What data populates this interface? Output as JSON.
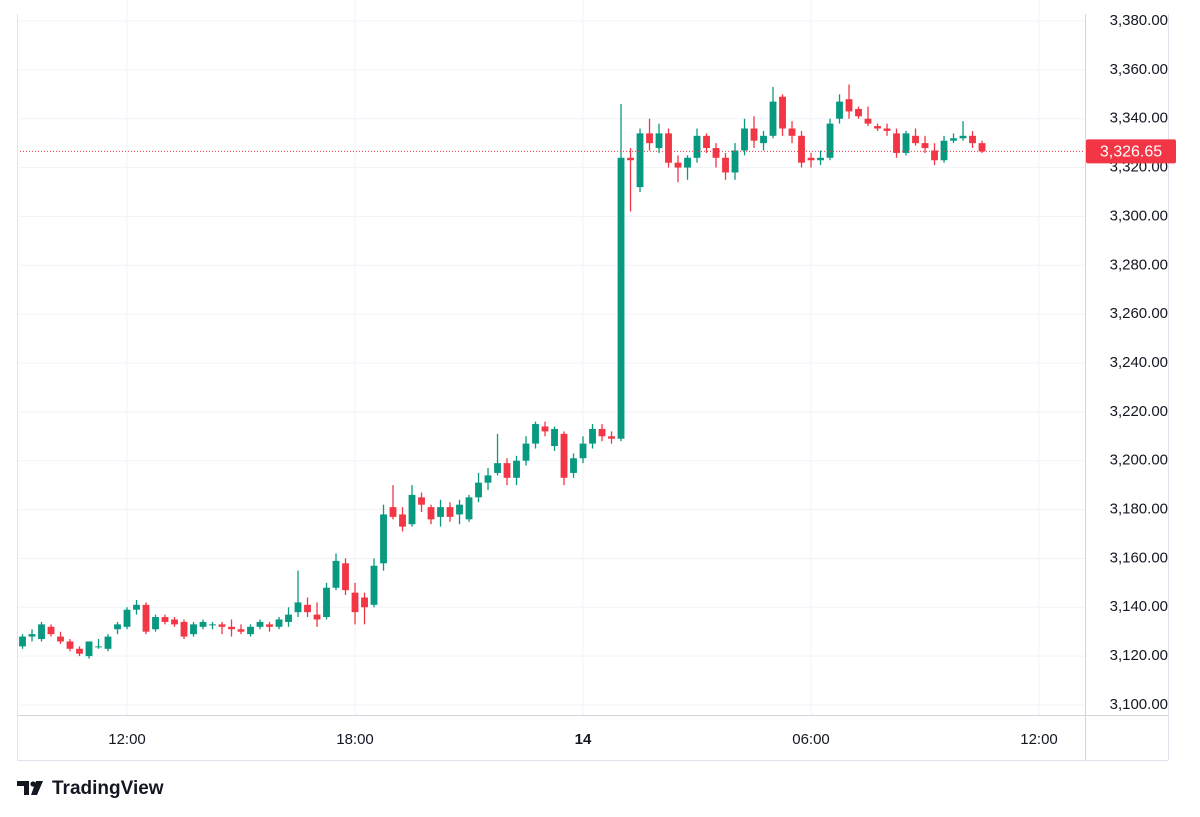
{
  "chart_data": {
    "type": "candlestick",
    "x": [
      9.25,
      9.5,
      9.75,
      10,
      10.25,
      10.5,
      10.75,
      11,
      11.25,
      11.5,
      11.75,
      12,
      12.25,
      12.5,
      12.75,
      13,
      13.25,
      13.5,
      13.75,
      14,
      14.25,
      14.5,
      14.75,
      15,
      15.25,
      15.5,
      15.75,
      16,
      16.25,
      16.5,
      16.75,
      17,
      17.25,
      17.5,
      17.75,
      18,
      18.25,
      18.5,
      18.75,
      19,
      19.25,
      19.5,
      19.75,
      20,
      20.25,
      20.5,
      20.75,
      21,
      21.25,
      21.5,
      21.75,
      22,
      22.25,
      22.5,
      22.75,
      23,
      23.25,
      23.5,
      23.75,
      24,
      24.25,
      24.5,
      24.75,
      25,
      25.25,
      25.5,
      25.75,
      26,
      26.25,
      26.5,
      26.75,
      27,
      27.25,
      27.5,
      27.75,
      28,
      28.25,
      28.5,
      28.75,
      29,
      29.25,
      29.5,
      29.75,
      30,
      30.25,
      30.5,
      30.75,
      31,
      31.25,
      31.5,
      31.75,
      32,
      32.25,
      32.5,
      32.75,
      33,
      33.25,
      33.5,
      33.75,
      34,
      34.25,
      34.5
    ],
    "candles": [
      [
        3124,
        3129,
        3123,
        3128
      ],
      [
        3128,
        3131,
        3126,
        3129
      ],
      [
        3127,
        3134,
        3126,
        3133
      ],
      [
        3132,
        3133,
        3128,
        3129
      ],
      [
        3128,
        3130,
        3125,
        3126
      ],
      [
        3126,
        3127,
        3122,
        3123
      ],
      [
        3123,
        3124,
        3120,
        3121
      ],
      [
        3120,
        3126,
        3119,
        3126
      ],
      [
        3124,
        3127,
        3123,
        3124
      ],
      [
        3123,
        3129,
        3122,
        3128
      ],
      [
        3131,
        3134,
        3129,
        3133
      ],
      [
        3132,
        3140,
        3131,
        3139
      ],
      [
        3139,
        3143,
        3137,
        3141
      ],
      [
        3141,
        3142,
        3129,
        3130
      ],
      [
        3131,
        3137,
        3130,
        3136
      ],
      [
        3136,
        3137,
        3133,
        3134
      ],
      [
        3135,
        3136,
        3132,
        3133
      ],
      [
        3134,
        3135,
        3127,
        3128
      ],
      [
        3129,
        3134,
        3128,
        3133
      ],
      [
        3132,
        3135,
        3131,
        3134
      ],
      [
        3133,
        3134,
        3131,
        3133
      ],
      [
        3133,
        3134,
        3129,
        3132
      ],
      [
        3132,
        3135,
        3128,
        3131
      ],
      [
        3131,
        3133,
        3129,
        3130
      ],
      [
        3129,
        3133,
        3128,
        3132
      ],
      [
        3132,
        3135,
        3131,
        3134
      ],
      [
        3133,
        3134,
        3130,
        3132
      ],
      [
        3132,
        3136,
        3131,
        3135
      ],
      [
        3134,
        3140,
        3132,
        3137
      ],
      [
        3138,
        3155,
        3136,
        3142
      ],
      [
        3141,
        3144,
        3136,
        3138
      ],
      [
        3137,
        3142,
        3132,
        3135
      ],
      [
        3136,
        3150,
        3135,
        3148
      ],
      [
        3148,
        3162,
        3147,
        3159
      ],
      [
        3158,
        3160,
        3145,
        3147
      ],
      [
        3146,
        3150,
        3133,
        3138
      ],
      [
        3144,
        3146,
        3133,
        3140
      ],
      [
        3141,
        3160,
        3140,
        3157
      ],
      [
        3158,
        3182,
        3155,
        3178
      ],
      [
        3181,
        3190,
        3176,
        3177
      ],
      [
        3178,
        3181,
        3171,
        3173
      ],
      [
        3174,
        3190,
        3173,
        3186
      ],
      [
        3185,
        3187,
        3179,
        3182
      ],
      [
        3181,
        3182,
        3174,
        3176
      ],
      [
        3177,
        3184,
        3173,
        3181
      ],
      [
        3181,
        3183,
        3175,
        3177
      ],
      [
        3178,
        3184,
        3174,
        3182
      ],
      [
        3176,
        3186,
        3175,
        3185
      ],
      [
        3185,
        3195,
        3183,
        3191
      ],
      [
        3191,
        3197,
        3188,
        3194
      ],
      [
        3195,
        3211,
        3194,
        3199
      ],
      [
        3199,
        3201,
        3190,
        3193
      ],
      [
        3193,
        3202,
        3190,
        3200
      ],
      [
        3200,
        3210,
        3198,
        3207
      ],
      [
        3207,
        3216,
        3205,
        3215
      ],
      [
        3214,
        3216,
        3210,
        3212
      ],
      [
        3206,
        3214,
        3204,
        3213
      ],
      [
        3211,
        3212,
        3190,
        3193
      ],
      [
        3195,
        3203,
        3193,
        3201
      ],
      [
        3201,
        3210,
        3199,
        3207
      ],
      [
        3207,
        3215,
        3205,
        3213
      ],
      [
        3213,
        3215,
        3208,
        3210
      ],
      [
        3210,
        3212,
        3207,
        3209
      ],
      [
        3209,
        3346,
        3208,
        3324
      ],
      [
        3324,
        3328,
        3302,
        3323
      ],
      [
        3312,
        3336,
        3310,
        3334
      ],
      [
        3334,
        3340,
        3327,
        3330
      ],
      [
        3328,
        3338,
        3326,
        3334
      ],
      [
        3334,
        3336,
        3320,
        3322
      ],
      [
        3322,
        3325,
        3314,
        3320
      ],
      [
        3320,
        3325,
        3315,
        3324
      ],
      [
        3324,
        3336,
        3322,
        3333
      ],
      [
        3333,
        3334,
        3326,
        3328
      ],
      [
        3328,
        3330,
        3320,
        3324
      ],
      [
        3324,
        3326,
        3315,
        3318
      ],
      [
        3318,
        3330,
        3315,
        3327
      ],
      [
        3327,
        3340,
        3325,
        3336
      ],
      [
        3336,
        3341,
        3328,
        3331
      ],
      [
        3330,
        3335,
        3327,
        3333
      ],
      [
        3333,
        3353,
        3332,
        3347
      ],
      [
        3349,
        3350,
        3333,
        3336
      ],
      [
        3336,
        3339,
        3330,
        3333
      ],
      [
        3333,
        3335,
        3320,
        3322
      ],
      [
        3324,
        3326,
        3320,
        3323
      ],
      [
        3323,
        3327,
        3321,
        3324
      ],
      [
        3324,
        3340,
        3323,
        3338
      ],
      [
        3340,
        3350,
        3338,
        3347
      ],
      [
        3348,
        3354,
        3340,
        3343
      ],
      [
        3344,
        3345,
        3340,
        3341
      ],
      [
        3340,
        3345,
        3337,
        3338
      ],
      [
        3337,
        3338,
        3335,
        3336
      ],
      [
        3336,
        3338,
        3333,
        3335
      ],
      [
        3334,
        3336,
        3324,
        3326
      ],
      [
        3326,
        3335,
        3325,
        3334
      ],
      [
        3333,
        3336,
        3329,
        3330
      ],
      [
        3330,
        3333,
        3326,
        3328
      ],
      [
        3327,
        3330,
        3321,
        3323
      ],
      [
        3323,
        3333,
        3322,
        3331
      ],
      [
        3331,
        3334,
        3330,
        3332
      ],
      [
        3332,
        3339,
        3331,
        3333
      ],
      [
        3333,
        3335,
        3328,
        3330
      ],
      [
        3330,
        3331,
        3326,
        3326.65
      ]
    ],
    "up_color": "#089981",
    "down_color": "#f23645",
    "grid": true,
    "xlim": [
      9.105,
      37.21
    ],
    "xticks": [
      {
        "value": 12,
        "label": "12:00"
      },
      {
        "value": 18,
        "label": "18:00"
      },
      {
        "value": 24,
        "label": "14"
      },
      {
        "value": 30,
        "label": "06:00"
      },
      {
        "value": 36,
        "label": "12:00"
      }
    ],
    "ylim": [
      3095.9,
      3388.6
    ],
    "yticks": [
      {
        "value": 3100,
        "label": "3,100.00"
      },
      {
        "value": 3120,
        "label": "3,120.00"
      },
      {
        "value": 3140,
        "label": "3,140.00"
      },
      {
        "value": 3160,
        "label": "3,160.00"
      },
      {
        "value": 3180,
        "label": "3,180.00"
      },
      {
        "value": 3200,
        "label": "3,200.00"
      },
      {
        "value": 3220,
        "label": "3,220.00"
      },
      {
        "value": 3240,
        "label": "3,240.00"
      },
      {
        "value": 3260,
        "label": "3,260.00"
      },
      {
        "value": 3280,
        "label": "3,280.00"
      },
      {
        "value": 3300,
        "label": "3,300.00"
      },
      {
        "value": 3320,
        "label": "3,320.00"
      },
      {
        "value": 3340,
        "label": "3,340.00"
      },
      {
        "value": 3360,
        "label": "3,360.00"
      },
      {
        "value": 3380,
        "label": "3,380.00"
      }
    ],
    "last_price": {
      "value": 3326.65,
      "label": "3,326.65"
    }
  },
  "footer": {
    "brand": "TradingView"
  }
}
